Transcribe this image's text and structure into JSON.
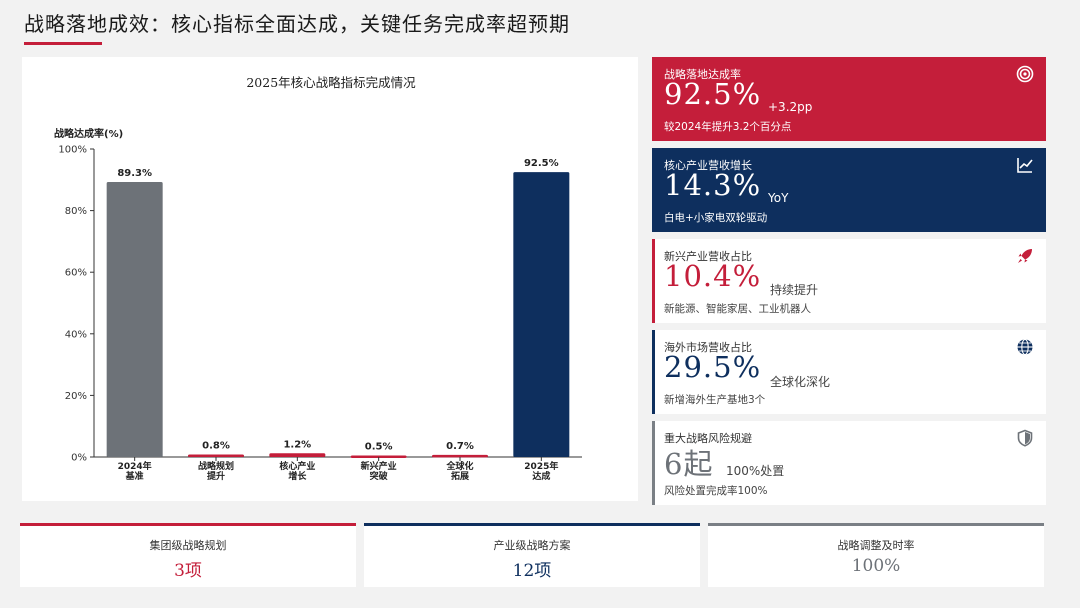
{
  "page": {
    "title": "战略落地成效：核心指标全面达成，关键任务完成率超预期"
  },
  "chart_data": {
    "type": "bar",
    "title": "2025年核心战略指标完成情况",
    "ylabel": "战略达成率(%)",
    "xlabel": "",
    "ylim": [
      0,
      100
    ],
    "yticks": [
      "0%",
      "20%",
      "40%",
      "60%",
      "80%",
      "100%"
    ],
    "ytick_values": [
      0,
      20,
      40,
      60,
      80,
      100
    ],
    "categories": [
      [
        "2024年",
        "基准"
      ],
      [
        "战略规划",
        "提升"
      ],
      [
        "核心产业",
        "增长"
      ],
      [
        "新兴产业",
        "突破"
      ],
      [
        "全球化",
        "拓展"
      ],
      [
        "2025年",
        "达成"
      ]
    ],
    "values": [
      89.3,
      0.8,
      1.2,
      0.5,
      0.7,
      92.5
    ],
    "data_labels": [
      "89.3%",
      "0.8%",
      "1.2%",
      "0.5%",
      "0.7%",
      "92.5%"
    ],
    "bar_colors": [
      "#6d7278",
      "#c41e3a",
      "#c41e3a",
      "#c41e3a",
      "#c41e3a",
      "#0e2f5e"
    ],
    "grid": false
  },
  "cards": [
    {
      "label": "战略落地达成率",
      "value": "92.5%",
      "extra": "+3.2pp",
      "sub": "较2024年提升3.2个百分点",
      "icon": "target-icon",
      "style": "red"
    },
    {
      "label": "核心产业营收增长",
      "value": "14.3%",
      "extra": "YoY",
      "sub": "白电+小家电双轮驱动",
      "icon": "line-chart-icon",
      "style": "navy"
    },
    {
      "label": "新兴产业营收占比",
      "value": "10.4%",
      "extra": "持续提升",
      "sub": "新能源、智能家居、工业机器人",
      "icon": "rocket-icon",
      "style": "light",
      "accent": "#c41e3a"
    },
    {
      "label": "海外市场营收占比",
      "value": "29.5%",
      "extra": "全球化深化",
      "sub": "新增海外生产基地3个",
      "icon": "globe-icon",
      "style": "light",
      "accent": "#0e2f5e"
    },
    {
      "label": "重大战略风险规避",
      "value": "6起",
      "extra": "100%处置",
      "sub": "风险处置完成率100%",
      "icon": "shield-icon",
      "style": "light",
      "accent": "#7a7f85"
    }
  ],
  "bottom": [
    {
      "label": "集团级战略规划",
      "value": "3项",
      "color": "#c41e3a"
    },
    {
      "label": "产业级战略方案",
      "value": "12项",
      "color": "#0e2f5e"
    },
    {
      "label": "战略调整及时率",
      "value": "100%",
      "color": "#7a7f85"
    }
  ]
}
